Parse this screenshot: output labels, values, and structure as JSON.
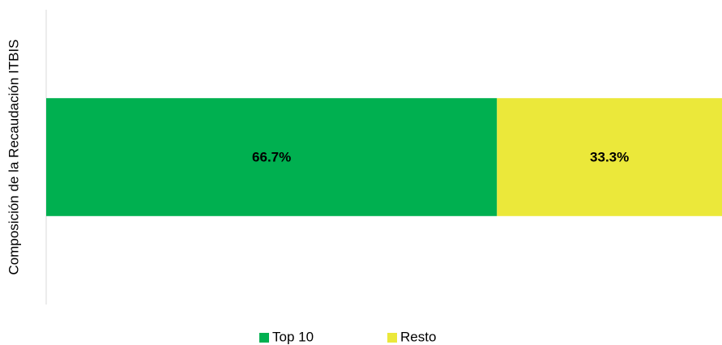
{
  "chart_data": {
    "type": "stacked_barh",
    "ylabel": "Composición de la Recaudación ITBIS",
    "categories": [
      null
    ],
    "series": [
      {
        "name": "Top 10",
        "color": "#00b050",
        "values": [
          66.7
        ],
        "value_labels": [
          "66.7%"
        ]
      },
      {
        "name": "Resto",
        "color": "#ebe83a",
        "values": [
          33.3
        ],
        "value_labels": [
          "33.3%"
        ]
      }
    ],
    "xlim": [
      0,
      100
    ],
    "legend": "bottom"
  }
}
